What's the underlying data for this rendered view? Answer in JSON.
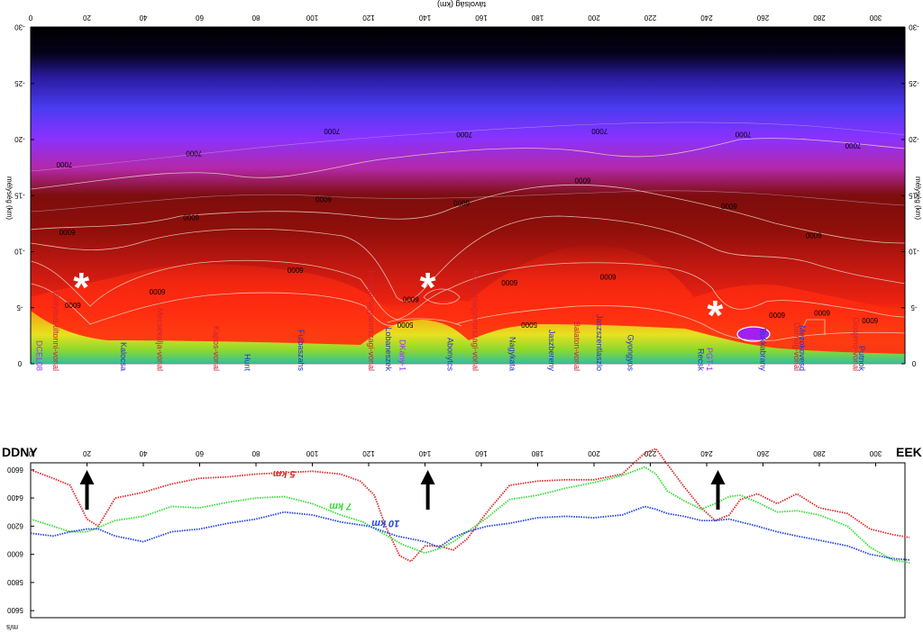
{
  "section": {
    "top_axis_label": "távolság (km)",
    "left_axis_label": "mélység (km)",
    "right_axis_label": "mélység (km)",
    "x_ticks": [
      0,
      20,
      40,
      60,
      80,
      100,
      120,
      140,
      160,
      180,
      200,
      220,
      240,
      260,
      280,
      300
    ],
    "depth_ticks": [
      0,
      -5,
      -10,
      -15,
      -20,
      -25,
      -30
    ],
    "contour_labels": [
      {
        "text": "7000",
        "x": 12,
        "d": 17.5
      },
      {
        "text": "7000",
        "x": 58,
        "d": 18.5
      },
      {
        "text": "7000",
        "x": 107,
        "d": 20.5
      },
      {
        "text": "7000",
        "x": 154,
        "d": 20.2
      },
      {
        "text": "7000",
        "x": 202,
        "d": 20.5
      },
      {
        "text": "7000",
        "x": 253,
        "d": 20.2
      },
      {
        "text": "7000",
        "x": 292,
        "d": 19.2
      },
      {
        "text": "6000",
        "x": 13,
        "d": 11.5
      },
      {
        "text": "6000",
        "x": 57,
        "d": 12.8
      },
      {
        "text": "6000",
        "x": 104,
        "d": 14.4
      },
      {
        "text": "6000",
        "x": 153,
        "d": 14.1
      },
      {
        "text": "6000",
        "x": 196,
        "d": 16.1
      },
      {
        "text": "6000",
        "x": 248,
        "d": 13.8
      },
      {
        "text": "6000",
        "x": 278,
        "d": 11.2
      },
      {
        "text": "6000",
        "x": 94,
        "d": 8.1
      },
      {
        "text": "6000",
        "x": 45,
        "d": 6.2
      },
      {
        "text": "6000",
        "x": 15,
        "d": 5.0
      },
      {
        "text": "6000",
        "x": 135,
        "d": 5.5
      },
      {
        "text": "6000",
        "x": 170,
        "d": 7.0
      },
      {
        "text": "6000",
        "x": 205,
        "d": 7.5
      },
      {
        "text": "6000",
        "x": 265,
        "d": 4.1
      },
      {
        "text": "6000",
        "x": 281,
        "d": 4.3
      },
      {
        "text": "6000",
        "x": 298,
        "d": 3.6
      },
      {
        "text": "5000",
        "x": 133,
        "d": 3.2
      },
      {
        "text": "5000",
        "x": 177,
        "d": 3.2
      }
    ],
    "stations": [
      {
        "text": "DCEL08",
        "x": 2,
        "color": "#9b30ff"
      },
      {
        "text": "Bellyhuti-tiltonni-vonal",
        "x": 8,
        "color": "#cc2233"
      },
      {
        "text": "Kalocsa",
        "x": 32,
        "color": "#2233cc"
      },
      {
        "text": "Mecsekalja-vonal",
        "x": 45,
        "color": "#cc2233"
      },
      {
        "text": "Kapos-vonal",
        "x": 65,
        "color": "#cc2233"
      },
      {
        "text": "Hunt",
        "x": 76,
        "color": "#2233cc"
      },
      {
        "text": "Fulbaszahs",
        "x": 95,
        "color": "#2233cc"
      },
      {
        "text": "Kozep-magyarorszagi-vonal",
        "x": 120,
        "color": "#cc2233"
      },
      {
        "text": "Lobaneszek",
        "x": 126,
        "color": "#2233cc"
      },
      {
        "text": "DKany-1",
        "x": 131,
        "color": "#9b30ff"
      },
      {
        "text": "Abonytcs",
        "x": 148,
        "color": "#2233cc"
      },
      {
        "text": "Kozep-magyarorszagi-vonal",
        "x": 157,
        "color": "#cc2233"
      },
      {
        "text": "Nagykata",
        "x": 170,
        "color": "#2233cc"
      },
      {
        "text": "Jaszbereny",
        "x": 184,
        "color": "#2233cc"
      },
      {
        "text": "Balaton-vonal",
        "x": 193,
        "color": "#cc2233"
      },
      {
        "text": "Jaszszentlaszlo",
        "x": 201,
        "color": "#2233cc"
      },
      {
        "text": "Gyongyos",
        "x": 212,
        "color": "#2233cc"
      },
      {
        "text": "Recsk",
        "x": 237,
        "color": "#2233cc"
      },
      {
        "text": "PGT-1",
        "x": 240,
        "color": "#9b30ff"
      },
      {
        "text": "Bukkabrany",
        "x": 259,
        "color": "#2233cc"
      },
      {
        "text": "Darnog-vonal",
        "x": 271,
        "color": "#cc2233"
      },
      {
        "text": "Mezokovesd",
        "x": 273,
        "color": "#2233cc"
      },
      {
        "text": "Diosjeno-vonal",
        "x": 292,
        "color": "#cc2233"
      },
      {
        "text": "Putnok",
        "x": 294,
        "color": "#2233cc"
      }
    ],
    "markers": [
      {
        "symbol": "*",
        "x": 18,
        "d": 7.0
      },
      {
        "symbol": "*",
        "x": 141,
        "d": 7.0
      },
      {
        "symbol": "*",
        "x": 243,
        "d": 4.5
      }
    ]
  },
  "orientation": {
    "left": "DDNY",
    "right": "EEK"
  },
  "chart_data": {
    "type": "line",
    "title": "",
    "ylabel": "m/s",
    "xlabel": "",
    "x_ticks": [
      0,
      20,
      40,
      60,
      80,
      100,
      120,
      140,
      160,
      180,
      200,
      220,
      240,
      260,
      280,
      300
    ],
    "y_ticks": [
      5600,
      5800,
      6000,
      6200,
      6400,
      6600
    ],
    "ylim": [
      5550,
      6650
    ],
    "series": [
      {
        "name": "5 km",
        "color": "#dd2b2b",
        "x": [
          0,
          8,
          14,
          20,
          24,
          30,
          40,
          50,
          60,
          70,
          80,
          90,
          100,
          110,
          117,
          122,
          126,
          131,
          135,
          140,
          145,
          150,
          155,
          162,
          170,
          180,
          190,
          200,
          210,
          218,
          222,
          226,
          232,
          238,
          243,
          248,
          252,
          258,
          265,
          272,
          280,
          290,
          298,
          306,
          312
        ],
        "values": [
          6600,
          6540,
          6490,
          6250,
          6200,
          6400,
          6440,
          6500,
          6540,
          6550,
          6570,
          6580,
          6590,
          6570,
          6520,
          6420,
          6200,
          5990,
          5950,
          6060,
          6060,
          6030,
          6110,
          6300,
          6490,
          6520,
          6530,
          6530,
          6570,
          6720,
          6750,
          6640,
          6480,
          6330,
          6240,
          6280,
          6390,
          6430,
          6360,
          6430,
          6330,
          6290,
          6180,
          6140,
          6120
        ]
      },
      {
        "name": "7 km",
        "color": "#33dd33",
        "x": [
          0,
          8,
          14,
          20,
          24,
          30,
          40,
          50,
          60,
          70,
          80,
          90,
          100,
          110,
          118,
          125,
          132,
          140,
          145,
          150,
          155,
          162,
          170,
          180,
          190,
          200,
          210,
          218,
          222,
          226,
          232,
          238,
          243,
          248,
          252,
          258,
          265,
          272,
          280,
          290,
          298,
          306,
          312
        ],
        "values": [
          6250,
          6200,
          6160,
          6160,
          6190,
          6240,
          6270,
          6340,
          6330,
          6370,
          6400,
          6410,
          6360,
          6280,
          6230,
          6150,
          6070,
          6010,
          6040,
          6090,
          6160,
          6260,
          6390,
          6420,
          6470,
          6510,
          6560,
          6620,
          6570,
          6450,
          6380,
          6320,
          6360,
          6410,
          6420,
          6370,
          6300,
          6310,
          6280,
          6200,
          6050,
          5960,
          5940
        ]
      },
      {
        "name": "10 km",
        "color": "#2244dd",
        "x": [
          0,
          8,
          14,
          20,
          24,
          30,
          40,
          50,
          60,
          70,
          80,
          90,
          100,
          110,
          120,
          130,
          140,
          145,
          150,
          155,
          162,
          170,
          180,
          190,
          200,
          210,
          218,
          222,
          226,
          232,
          238,
          243,
          248,
          252,
          258,
          265,
          272,
          280,
          290,
          298,
          306,
          312
        ],
        "values": [
          6150,
          6130,
          6160,
          6180,
          6180,
          6130,
          6090,
          6160,
          6180,
          6220,
          6250,
          6300,
          6280,
          6230,
          6200,
          6130,
          6090,
          6050,
          6120,
          6160,
          6200,
          6220,
          6260,
          6270,
          6260,
          6280,
          6340,
          6320,
          6290,
          6270,
          6240,
          6240,
          6250,
          6230,
          6200,
          6160,
          6130,
          6100,
          6060,
          6000,
          5970,
          5960
        ]
      }
    ],
    "series_label_positions": [
      {
        "label": "5 km",
        "x": 90,
        "y": 6540
      },
      {
        "label": "7 km",
        "x": 110,
        "y": 6310
      },
      {
        "label": "10 km",
        "x": 126,
        "y": 6190
      }
    ],
    "arrows_at_x": [
      20,
      141,
      244
    ]
  }
}
